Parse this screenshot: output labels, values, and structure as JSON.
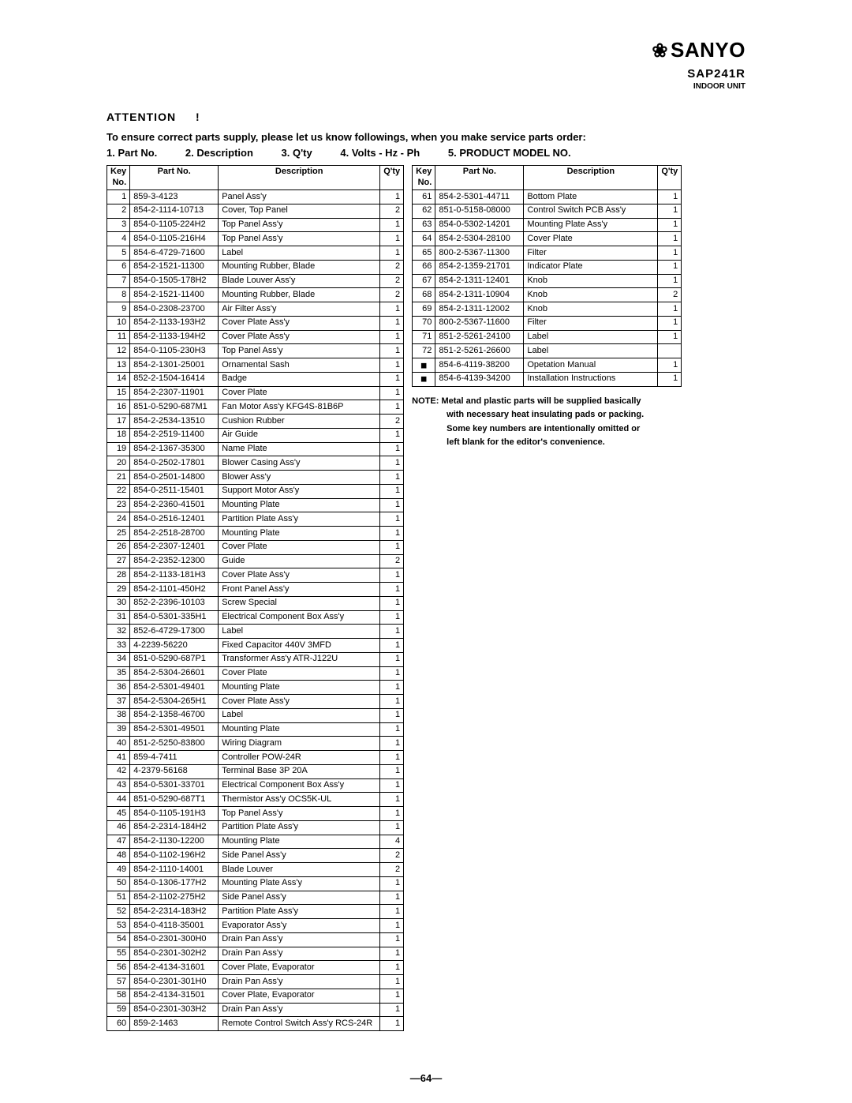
{
  "brand": "SANYO",
  "model": "SAP241R",
  "unit": "INDOOR UNIT",
  "attention": "ATTENTION",
  "attention_bang": "!",
  "attn_line": "To ensure correct parts supply, please let us know followings, when you make service parts order:",
  "fields": [
    "1. Part No.",
    "2. Description",
    "3. Q'ty",
    "4. Volts - Hz - Ph",
    "5. PRODUCT MODEL NO."
  ],
  "headers": {
    "key": "Key No.",
    "part": "Part No.",
    "desc": "Description",
    "qty": "Q'ty"
  },
  "note_label": "NOTE:",
  "note_lines": [
    "Metal and plastic parts will be supplied basically",
    "with necessary heat insulating pads or packing.",
    "Some key numbers are intentionally omitted or",
    "left blank for the editor's convenience."
  ],
  "pagenum": "—64—",
  "table1": [
    [
      "1",
      "859-3-4123",
      "Panel Ass'y",
      "1"
    ],
    [
      "2",
      "854-2-1114-10713",
      "Cover, Top Panel",
      "2"
    ],
    [
      "3",
      "854-0-1105-224H2",
      "Top Panel Ass'y",
      "1"
    ],
    [
      "4",
      "854-0-1105-216H4",
      "Top Panel Ass'y",
      "1"
    ],
    [
      "5",
      "854-6-4729-71600",
      "Label",
      "1"
    ],
    [
      "6",
      "854-2-1521-11300",
      "Mounting Rubber, Blade",
      "2"
    ],
    [
      "7",
      "854-0-1505-178H2",
      "Blade Louver Ass'y",
      "2"
    ],
    [
      "8",
      "854-2-1521-11400",
      "Mounting Rubber, Blade",
      "2"
    ],
    [
      "9",
      "854-0-2308-23700",
      "Air Filter Ass'y",
      "1"
    ],
    [
      "10",
      "854-2-1133-193H2",
      "Cover Plate Ass'y",
      "1"
    ],
    [
      "11",
      "854-2-1133-194H2",
      "Cover Plate Ass'y",
      "1"
    ],
    [
      "12",
      "854-0-1105-230H3",
      "Top Panel Ass'y",
      "1"
    ],
    [
      "13",
      "854-2-1301-25001",
      "Ornamental Sash",
      "1"
    ],
    [
      "14",
      "852-2-1504-16414",
      "Badge",
      "1"
    ],
    [
      "15",
      "854-2-2307-11901",
      "Cover Plate",
      "1"
    ],
    [
      "16",
      "851-0-5290-687M1",
      "Fan Motor Ass'y  KFG4S-81B6P",
      "1"
    ],
    [
      "17",
      "854-2-2534-13510",
      "Cushion Rubber",
      "2"
    ],
    [
      "18",
      "854-2-2519-11400",
      "Air Guide",
      "1"
    ],
    [
      "19",
      "854-2-1367-35300",
      "Name Plate",
      "1"
    ],
    [
      "20",
      "854-0-2502-17801",
      "Blower Casing Ass'y",
      "1"
    ],
    [
      "21",
      "854-0-2501-14800",
      "Blower Ass'y",
      "1"
    ],
    [
      "22",
      "854-0-2511-15401",
      "Support Motor Ass'y",
      "1"
    ],
    [
      "23",
      "854-2-2360-41501",
      "Mounting Plate",
      "1"
    ],
    [
      "24",
      "854-0-2516-12401",
      "Partition Plate Ass'y",
      "1"
    ],
    [
      "25",
      "854-2-2518-28700",
      "Mounting Plate",
      "1"
    ],
    [
      "26",
      "854-2-2307-12401",
      "Cover Plate",
      "1"
    ],
    [
      "27",
      "854-2-2352-12300",
      "Guide",
      "2"
    ],
    [
      "28",
      "854-2-1133-181H3",
      "Cover Plate Ass'y",
      "1"
    ],
    [
      "29",
      "854-2-1101-450H2",
      "Front Panel Ass'y",
      "1"
    ],
    [
      "30",
      "852-2-2396-10103",
      "Screw Special",
      "1"
    ],
    [
      "31",
      "854-0-5301-335H1",
      "Electrical Component Box Ass'y",
      "1"
    ],
    [
      "32",
      "852-6-4729-17300",
      "Label",
      "1"
    ],
    [
      "33",
      "4-2239-56220",
      "Fixed Capacitor 440V 3MFD",
      "1"
    ],
    [
      "34",
      "851-0-5290-687P1",
      "Transformer Ass'y  ATR-J122U",
      "1"
    ],
    [
      "35",
      "854-2-5304-26601",
      "Cover Plate",
      "1"
    ],
    [
      "36",
      "854-2-5301-49401",
      "Mounting Plate",
      "1"
    ],
    [
      "37",
      "854-2-5304-265H1",
      "Cover Plate Ass'y",
      "1"
    ],
    [
      "38",
      "854-2-1358-46700",
      "Label",
      "1"
    ],
    [
      "39",
      "854-2-5301-49501",
      "Mounting Plate",
      "1"
    ],
    [
      "40",
      "851-2-5250-83800",
      "Wiring Diagram",
      "1"
    ],
    [
      "41",
      "859-4-7411",
      "Controller POW-24R",
      "1"
    ],
    [
      "42",
      "4-2379-56168",
      "Terminal Base 3P 20A",
      "1"
    ],
    [
      "43",
      "854-0-5301-33701",
      "Electrical Component Box Ass'y",
      "1"
    ],
    [
      "44",
      "851-0-5290-687T1",
      "Thermistor Ass'y  OCS5K-UL",
      "1"
    ],
    [
      "45",
      "854-0-1105-191H3",
      "Top Panel Ass'y",
      "1"
    ],
    [
      "46",
      "854-2-2314-184H2",
      "Partition Plate Ass'y",
      "1"
    ],
    [
      "47",
      "854-2-1130-12200",
      "Mounting Plate",
      "4"
    ],
    [
      "48",
      "854-0-1102-196H2",
      "Side Panel Ass'y",
      "2"
    ],
    [
      "49",
      "854-2-1110-14001",
      "Blade Louver",
      "2"
    ],
    [
      "50",
      "854-0-1306-177H2",
      "Mounting Plate Ass'y",
      "1"
    ],
    [
      "51",
      "854-2-1102-275H2",
      "Side Panel Ass'y",
      "1"
    ],
    [
      "52",
      "854-2-2314-183H2",
      "Partition Plate Ass'y",
      "1"
    ],
    [
      "53",
      "854-0-4118-35001",
      "Evaporator Ass'y",
      "1"
    ],
    [
      "54",
      "854-0-2301-300H0",
      "Drain Pan Ass'y",
      "1"
    ],
    [
      "55",
      "854-0-2301-302H2",
      "Drain Pan Ass'y",
      "1"
    ],
    [
      "56",
      "854-2-4134-31601",
      "Cover Plate, Evaporator",
      "1"
    ],
    [
      "57",
      "854-0-2301-301H0",
      "Drain Pan Ass'y",
      "1"
    ],
    [
      "58",
      "854-2-4134-31501",
      "Cover Plate, Evaporator",
      "1"
    ],
    [
      "59",
      "854-0-2301-303H2",
      "Drain Pan Ass'y",
      "1"
    ],
    [
      "60",
      "859-2-1463",
      "Remote Control Switch Ass'y RCS-24R",
      "1"
    ]
  ],
  "table2": [
    [
      "61",
      "854-2-5301-44711",
      "Bottom Plate",
      "1"
    ],
    [
      "62",
      "851-0-5158-08000",
      "Control Switch PCB Ass'y",
      "1"
    ],
    [
      "63",
      "854-0-5302-14201",
      "Mounting Plate Ass'y",
      "1"
    ],
    [
      "64",
      "854-2-5304-28100",
      "Cover Plate",
      "1"
    ],
    [
      "65",
      "800-2-5367-11300",
      "Filter",
      "1"
    ],
    [
      "66",
      "854-2-1359-21701",
      "Indicator Plate",
      "1"
    ],
    [
      "67",
      "854-2-1311-12401",
      "Knob",
      "1"
    ],
    [
      "68",
      "854-2-1311-10904",
      "Knob",
      "2"
    ],
    [
      "69",
      "854-2-1311-12002",
      "Knob",
      "1"
    ],
    [
      "70",
      "800-2-5367-11600",
      "Filter",
      "1"
    ],
    [
      "71",
      "851-2-5261-24100",
      "Label",
      "1"
    ],
    [
      "72",
      "851-2-5261-26600",
      "Label",
      ""
    ],
    [
      "■",
      "854-6-4119-38200",
      "Opetation Manual",
      "1"
    ],
    [
      "■",
      "854-6-4139-34200",
      "Installation Instructions",
      "1"
    ]
  ]
}
